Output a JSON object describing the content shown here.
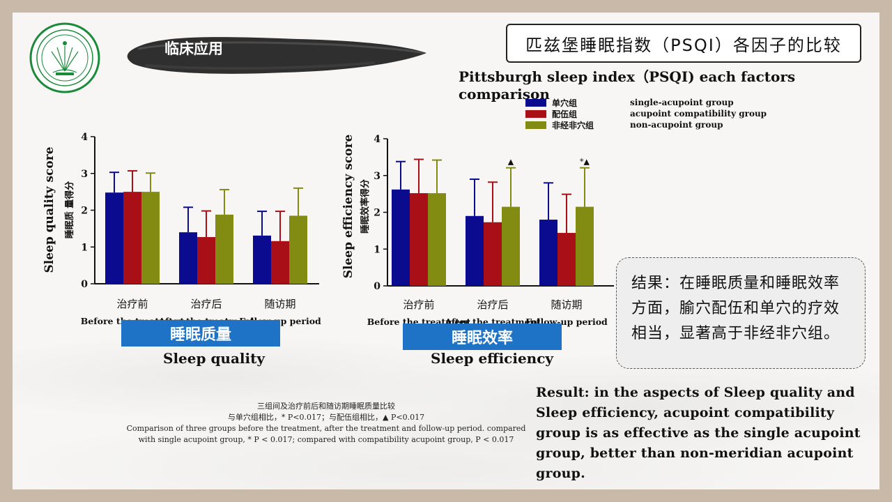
{
  "header": {
    "section_label": "临床应用",
    "title_cn": "匹兹堡睡眠指数（PSQI）各因子的比较",
    "title_en": "Pittsburgh sleep index（PSQI) each factors comparison"
  },
  "legend": [
    {
      "cn": "单穴组",
      "en": "single-acupoint group",
      "color": "#0b0b8f"
    },
    {
      "cn": "配伍组",
      "en": "acupoint compatibility group",
      "color": "#a90f16"
    },
    {
      "cn": "非经非穴组",
      "en": "non-acupoint group",
      "color": "#828b12"
    }
  ],
  "chart_data": [
    {
      "type": "bar",
      "ylabel": "Sleep quality score",
      "ylabel_cn": "睡眠质 量得分",
      "ylim": [
        0,
        4
      ],
      "yticks": [
        "0",
        "1",
        "2",
        "3",
        "4"
      ],
      "categories": [
        "治疗前",
        "治疗后",
        "随访期"
      ],
      "categories_en": [
        "Before the treatment",
        "After the treatment",
        "Follow-up period"
      ],
      "series": [
        {
          "name": "单穴组",
          "color": "#0b0b8f",
          "values": [
            2.48,
            1.4,
            1.31
          ],
          "errors": [
            0.55,
            0.68,
            0.66
          ],
          "marks": [
            "",
            "",
            ""
          ]
        },
        {
          "name": "配伍组",
          "color": "#a90f16",
          "values": [
            2.5,
            1.27,
            1.16
          ],
          "errors": [
            0.57,
            0.71,
            0.81
          ],
          "marks": [
            "",
            "",
            ""
          ]
        },
        {
          "name": "非经非穴组",
          "color": "#828b12",
          "values": [
            2.5,
            1.88,
            1.85
          ],
          "errors": [
            0.51,
            0.68,
            0.75
          ],
          "marks": [
            "",
            "",
            ""
          ]
        }
      ],
      "band_label": "睡眠质量",
      "en_label": "Sleep quality"
    },
    {
      "type": "bar",
      "ylabel": "Sleep efficiency score",
      "ylabel_cn": "睡眠效率得分",
      "ylim": [
        0,
        4
      ],
      "yticks": [
        "0",
        "1",
        "2",
        "3",
        "4"
      ],
      "categories": [
        "治疗前",
        "治疗后",
        "随访期"
      ],
      "categories_en": [
        "Before the treatment",
        "After the treatment",
        "Follow-up period"
      ],
      "series": [
        {
          "name": "单穴组",
          "color": "#0b0b8f",
          "values": [
            2.62,
            1.9,
            1.8
          ],
          "errors": [
            0.76,
            1.0,
            1.0
          ],
          "marks": [
            "",
            "",
            ""
          ]
        },
        {
          "name": "配伍组",
          "color": "#a90f16",
          "values": [
            2.52,
            1.73,
            1.44
          ],
          "errors": [
            0.92,
            1.09,
            1.05
          ],
          "marks": [
            "",
            "",
            ""
          ]
        },
        {
          "name": "非经非穴组",
          "color": "#828b12",
          "values": [
            2.52,
            2.15,
            2.15
          ],
          "errors": [
            0.9,
            1.06,
            1.06
          ],
          "marks": [
            "",
            "▲",
            "*▲"
          ]
        }
      ],
      "band_label": "睡眠效率",
      "en_label": "Sleep efficiency"
    }
  ],
  "notes": [
    "三组间及治疗前后和随访期睡眠质量比较",
    "与单穴组相比，* P<0.017；与配伍组相比，▲ P<0.017",
    "Comparison of three groups before the treatment, after the treatment and follow-up period. compared",
    "with single acupoint group, * P < 0.017; compared with compatibility acupoint group, P < 0.017"
  ],
  "result": {
    "cn": "结果：在睡眠质量和睡眠效率方面，腧穴配伍和单穴的疗效相当，显著高于非经非穴组。",
    "en": "Result: in the aspects of Sleep quality and Sleep efficiency, acupoint compatibility  group is as effective as the single acupoint group, better than non-meridian acupoint group."
  }
}
